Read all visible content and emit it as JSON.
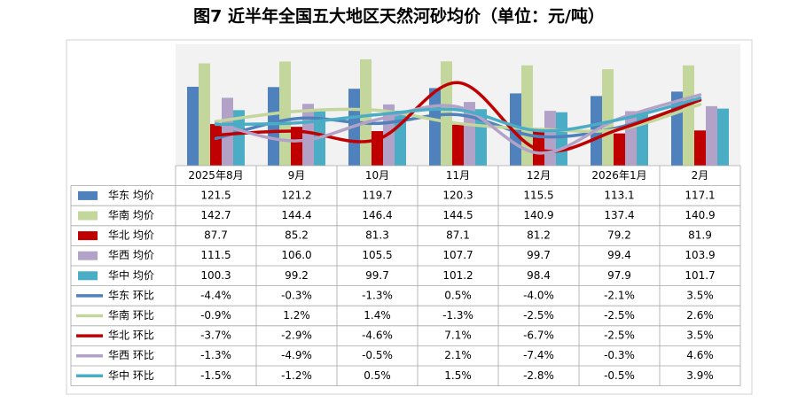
{
  "chart_data": {
    "type": "bar",
    "title": "图7 近半年全国五大地区天然河砂均价（单位：元/吨）",
    "categories": [
      "2025年8月",
      "9月",
      "10月",
      "11月",
      "12月",
      "2026年1月",
      "2月"
    ],
    "ylim": [
      50,
      160
    ],
    "y2lim": [
      -10,
      15
    ],
    "series": [
      {
        "name": "华东 均价",
        "type": "bar",
        "color": "#4f81bd",
        "values": [
          121.5,
          121.2,
          119.7,
          120.3,
          115.5,
          113.1,
          117.1
        ],
        "value_labels": [
          "121.5",
          "121.2",
          "119.7",
          "120.3",
          "115.5",
          "113.1",
          "117.1"
        ]
      },
      {
        "name": "华南 均价",
        "type": "bar",
        "color": "#c3d69b",
        "values": [
          142.7,
          144.4,
          146.4,
          144.5,
          140.9,
          137.4,
          140.9
        ],
        "value_labels": [
          "142.7",
          "144.4",
          "146.4",
          "144.5",
          "140.9",
          "137.4",
          "140.9"
        ]
      },
      {
        "name": "华北 均价",
        "type": "bar",
        "color": "#c00000",
        "values": [
          87.7,
          85.2,
          81.3,
          87.1,
          81.2,
          79.2,
          81.9
        ],
        "value_labels": [
          "87.7",
          "85.2",
          "81.3",
          "87.1",
          "81.2",
          "79.2",
          "81.9"
        ]
      },
      {
        "name": "华西 均价",
        "type": "bar",
        "color": "#b3a2c7",
        "values": [
          111.5,
          106.0,
          105.5,
          107.7,
          99.7,
          99.4,
          103.9
        ],
        "value_labels": [
          "111.5",
          "106.0",
          "105.5",
          "107.7",
          "99.7",
          "99.4",
          "103.9"
        ]
      },
      {
        "name": "华中 均价",
        "type": "bar",
        "color": "#4bacc6",
        "values": [
          100.3,
          99.2,
          99.7,
          101.2,
          98.4,
          97.9,
          101.7
        ],
        "value_labels": [
          "100.3",
          "99.2",
          "99.7",
          "101.2",
          "98.4",
          "97.9",
          "101.7"
        ]
      },
      {
        "name": "华东 环比",
        "type": "line",
        "axis": "y2",
        "color": "#4f81bd",
        "values": [
          -4.4,
          -0.3,
          -1.3,
          0.5,
          -4.0,
          -2.1,
          3.5
        ],
        "value_labels": [
          "-4.4%",
          "-0.3%",
          "-1.3%",
          "0.5%",
          "-4.0%",
          "-2.1%",
          "3.5%"
        ]
      },
      {
        "name": "华南 环比",
        "type": "line",
        "axis": "y2",
        "color": "#c3d69b",
        "values": [
          -0.9,
          1.2,
          1.4,
          -1.3,
          -2.5,
          -2.5,
          2.6
        ],
        "value_labels": [
          "-0.9%",
          "1.2%",
          "1.4%",
          "-1.3%",
          "-2.5%",
          "-2.5%",
          "2.6%"
        ]
      },
      {
        "name": "华北 环比",
        "type": "line",
        "axis": "y2",
        "color": "#c00000",
        "values": [
          -3.7,
          -2.9,
          -4.6,
          7.1,
          -6.7,
          -2.5,
          3.5
        ],
        "value_labels": [
          "-3.7%",
          "-2.9%",
          "-4.6%",
          "7.1%",
          "-6.7%",
          "-2.5%",
          "3.5%"
        ]
      },
      {
        "name": "华西 环比",
        "type": "line",
        "axis": "y2",
        "color": "#b3a2c7",
        "values": [
          -1.3,
          -4.9,
          -0.5,
          2.1,
          -7.4,
          -0.3,
          4.6
        ],
        "value_labels": [
          "-1.3%",
          "-4.9%",
          "-0.5%",
          "2.1%",
          "-7.4%",
          "-0.3%",
          "4.6%"
        ]
      },
      {
        "name": "华中 环比",
        "type": "line",
        "axis": "y2",
        "color": "#4bacc6",
        "values": [
          -1.5,
          -1.2,
          0.5,
          1.5,
          -2.8,
          -0.5,
          3.9
        ],
        "value_labels": [
          "-1.5%",
          "-1.2%",
          "0.5%",
          "1.5%",
          "-2.8%",
          "-0.5%",
          "3.9%"
        ]
      }
    ]
  }
}
